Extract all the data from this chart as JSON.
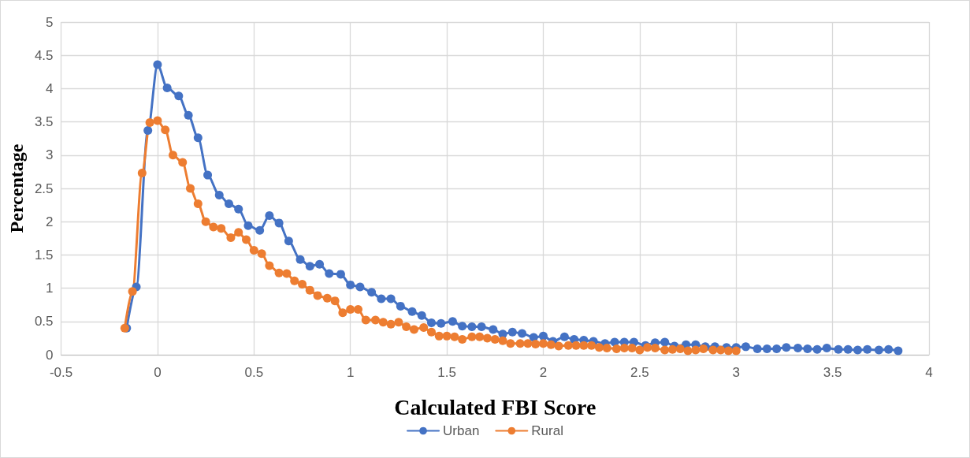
{
  "chart_data": {
    "type": "line",
    "xlabel": "Calculated FBI Score",
    "ylabel": "Percentage",
    "xlim": [
      -0.5,
      4
    ],
    "xticks": [
      -0.5,
      0,
      0.5,
      1,
      1.5,
      2,
      2.5,
      3,
      3.5,
      4
    ],
    "ylim": [
      0,
      5
    ],
    "yticks": [
      0,
      0.5,
      1,
      1.5,
      2,
      2.5,
      3,
      3.5,
      4,
      4.5,
      5
    ],
    "grid": true,
    "legend": "bottom",
    "marker": "circle",
    "line_style": "solid",
    "series": [
      {
        "name": "Urban",
        "color": "#4472c4",
        "x": [
          -0.16,
          -0.11,
          -0.05,
          0,
          0.05,
          0.11,
          0.16,
          0.21,
          0.26,
          0.32,
          0.37,
          0.42,
          0.47,
          0.53,
          0.58,
          0.63,
          0.68,
          0.74,
          0.79,
          0.84,
          0.89,
          0.95,
          1,
          1.05,
          1.11,
          1.16,
          1.21,
          1.26,
          1.32,
          1.37,
          1.42,
          1.47,
          1.53,
          1.58,
          1.63,
          1.68,
          1.74,
          1.79,
          1.84,
          1.89,
          1.95,
          2,
          2.05,
          2.11,
          2.16,
          2.21,
          2.26,
          2.32,
          2.37,
          2.42,
          2.47,
          2.53,
          2.58,
          2.63,
          2.68,
          2.74,
          2.79,
          2.84,
          2.89,
          2.95,
          3,
          3.05,
          3.11,
          3.16,
          3.21,
          3.26,
          3.32,
          3.37,
          3.42,
          3.47,
          3.53,
          3.58,
          3.63,
          3.68,
          3.74,
          3.79,
          3.84
        ],
        "values": [
          0.4,
          1.02,
          3.37,
          4.36,
          4.01,
          3.89,
          3.6,
          3.26,
          2.7,
          2.4,
          2.27,
          2.19,
          1.94,
          1.87,
          2.09,
          1.98,
          1.71,
          1.43,
          1.33,
          1.36,
          1.22,
          1.21,
          1.05,
          1.02,
          0.94,
          0.84,
          0.84,
          0.73,
          0.65,
          0.59,
          0.48,
          0.47,
          0.5,
          0.43,
          0.42,
          0.42,
          0.38,
          0.31,
          0.34,
          0.32,
          0.26,
          0.28,
          0.2,
          0.27,
          0.23,
          0.22,
          0.2,
          0.17,
          0.19,
          0.19,
          0.19,
          0.14,
          0.18,
          0.19,
          0.13,
          0.15,
          0.15,
          0.12,
          0.12,
          0.11,
          0.11,
          0.12,
          0.09,
          0.09,
          0.09,
          0.11,
          0.1,
          0.09,
          0.08,
          0.1,
          0.08,
          0.08,
          0.07,
          0.08,
          0.07,
          0.08,
          0.06
        ]
      },
      {
        "name": "Rural",
        "color": "#ed7d31",
        "x": [
          -0.17,
          -0.13,
          -0.08,
          -0.04,
          0,
          0.04,
          0.08,
          0.13,
          0.17,
          0.21,
          0.25,
          0.29,
          0.33,
          0.38,
          0.42,
          0.46,
          0.5,
          0.54,
          0.58,
          0.63,
          0.67,
          0.71,
          0.75,
          0.79,
          0.83,
          0.88,
          0.92,
          0.96,
          1,
          1.04,
          1.08,
          1.13,
          1.17,
          1.21,
          1.25,
          1.29,
          1.33,
          1.38,
          1.42,
          1.46,
          1.5,
          1.54,
          1.58,
          1.63,
          1.67,
          1.71,
          1.75,
          1.79,
          1.83,
          1.88,
          1.92,
          1.96,
          2,
          2.04,
          2.08,
          2.13,
          2.17,
          2.21,
          2.25,
          2.29,
          2.33,
          2.38,
          2.42,
          2.46,
          2.5,
          2.54,
          2.58,
          2.63,
          2.67,
          2.71,
          2.75,
          2.79,
          2.83,
          2.88,
          2.92,
          2.96,
          3
        ],
        "values": [
          0.4,
          0.95,
          2.73,
          3.49,
          3.52,
          3.38,
          3,
          2.89,
          2.5,
          2.27,
          2,
          1.92,
          1.9,
          1.76,
          1.84,
          1.73,
          1.57,
          1.52,
          1.34,
          1.23,
          1.22,
          1.11,
          1.06,
          0.97,
          0.89,
          0.85,
          0.81,
          0.63,
          0.68,
          0.68,
          0.52,
          0.52,
          0.49,
          0.46,
          0.49,
          0.42,
          0.38,
          0.41,
          0.34,
          0.28,
          0.28,
          0.27,
          0.23,
          0.27,
          0.27,
          0.25,
          0.23,
          0.21,
          0.17,
          0.17,
          0.17,
          0.16,
          0.17,
          0.15,
          0.13,
          0.14,
          0.14,
          0.14,
          0.14,
          0.11,
          0.1,
          0.09,
          0.1,
          0.1,
          0.07,
          0.11,
          0.1,
          0.07,
          0.08,
          0.09,
          0.06,
          0.07,
          0.09,
          0.07,
          0.07,
          0.06,
          0.06
        ]
      }
    ]
  }
}
